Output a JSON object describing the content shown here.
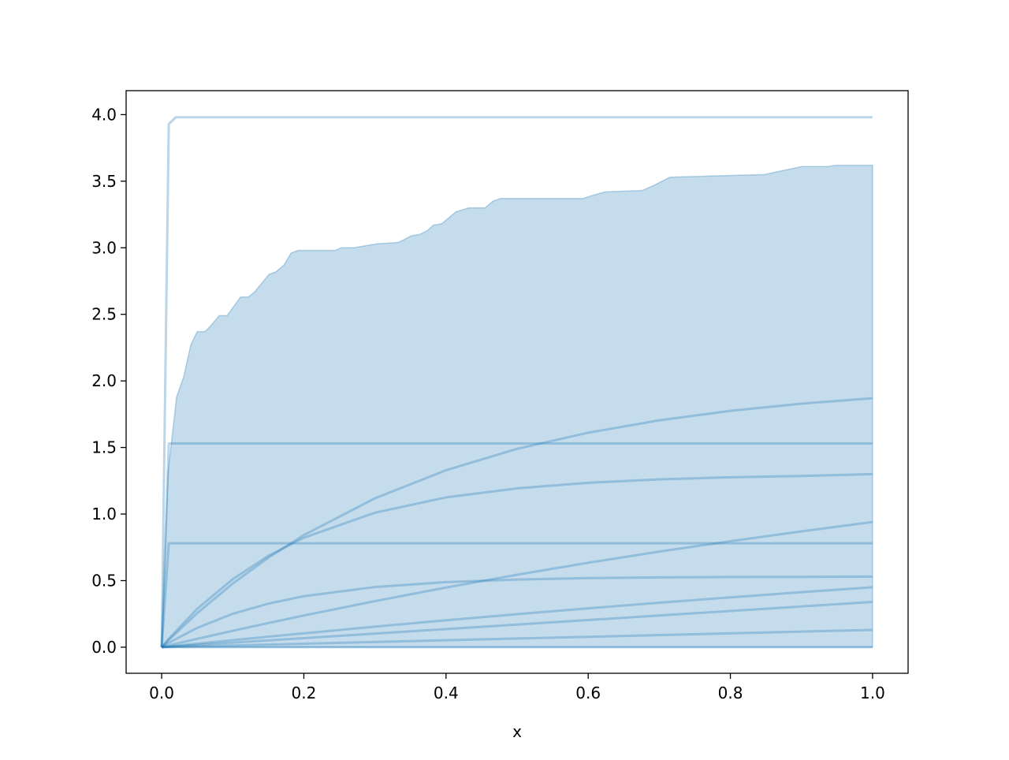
{
  "chart_data": {
    "type": "line",
    "title": "",
    "xlabel": "x",
    "ylabel": "",
    "xlim": [
      -0.05,
      1.05
    ],
    "ylim": [
      -0.196,
      4.18
    ],
    "xticks": [
      0.0,
      0.2,
      0.4,
      0.6,
      0.8,
      1.0
    ],
    "xtick_labels": [
      "0.0",
      "0.2",
      "0.4",
      "0.6",
      "0.8",
      "1.0"
    ],
    "yticks": [
      0.0,
      0.5,
      1.0,
      1.5,
      2.0,
      2.5,
      3.0,
      3.5,
      4.0
    ],
    "ytick_labels": [
      "0.0",
      "0.5",
      "1.0",
      "1.5",
      "2.0",
      "2.5",
      "3.0",
      "3.5",
      "4.0"
    ],
    "grid": false,
    "legend": "none",
    "colors": {
      "line": "#1f77b4",
      "fill": "#1f77b4",
      "axes": "#000000"
    },
    "band": {
      "upper": {
        "x": [
          0,
          0.009,
          0.021,
          0.031,
          0.041,
          0.05,
          0.061,
          0.07,
          0.081,
          0.092,
          0.111,
          0.122,
          0.131,
          0.151,
          0.161,
          0.172,
          0.182,
          0.192,
          0.244,
          0.253,
          0.27,
          0.303,
          0.333,
          0.351,
          0.363,
          0.374,
          0.382,
          0.394,
          0.414,
          0.432,
          0.455,
          0.466,
          0.477,
          0.593,
          0.604,
          0.624,
          0.676,
          0.693,
          0.715,
          0.848,
          0.865,
          0.901,
          0.937,
          0.948,
          1.0
        ],
        "y": [
          0,
          1.31,
          1.88,
          2.03,
          2.27,
          2.37,
          2.37,
          2.42,
          2.49,
          2.49,
          2.63,
          2.63,
          2.67,
          2.8,
          2.82,
          2.87,
          2.96,
          2.98,
          2.98,
          3.0,
          3.0,
          3.03,
          3.04,
          3.09,
          3.1,
          3.13,
          3.17,
          3.18,
          3.27,
          3.3,
          3.3,
          3.35,
          3.37,
          3.37,
          3.39,
          3.42,
          3.43,
          3.47,
          3.53,
          3.55,
          3.57,
          3.61,
          3.61,
          3.62,
          3.62
        ]
      },
      "lower": 0
    },
    "series": [
      {
        "x": [
          0,
          0.01,
          0.02,
          1.0
        ],
        "y": [
          0,
          3.93,
          3.98,
          3.98
        ]
      },
      {
        "x": [
          0,
          0.01,
          1.0
        ],
        "y": [
          0,
          1.53,
          1.53
        ]
      },
      {
        "x": [
          0,
          0.01,
          1.0
        ],
        "y": [
          0,
          0.78,
          0.78
        ]
      },
      {
        "x": [
          0,
          0.01,
          0.05,
          0.1,
          0.15,
          0.2,
          0.3,
          0.4,
          0.5,
          0.6,
          0.7,
          0.8,
          0.9,
          1.0
        ],
        "y": [
          0,
          0.054,
          0.256,
          0.478,
          0.672,
          0.842,
          1.118,
          1.329,
          1.49,
          1.611,
          1.704,
          1.775,
          1.829,
          1.87
        ]
      },
      {
        "x": [
          0,
          0.01,
          0.05,
          0.1,
          0.15,
          0.2,
          0.3,
          0.4,
          0.5,
          0.6,
          0.7,
          0.8,
          0.9,
          1.0
        ],
        "y": [
          0,
          0.063,
          0.288,
          0.511,
          0.686,
          0.822,
          1.01,
          1.125,
          1.193,
          1.235,
          1.261,
          1.276,
          1.286,
          1.3
        ]
      },
      {
        "x": [
          0,
          0.01,
          0.05,
          0.1,
          0.15,
          0.2,
          0.3,
          0.4,
          0.5,
          0.6,
          0.7,
          0.8,
          0.9,
          1.0
        ],
        "y": [
          0,
          0.033,
          0.145,
          0.251,
          0.327,
          0.383,
          0.452,
          0.489,
          0.508,
          0.519,
          0.524,
          0.527,
          0.528,
          0.53
        ]
      },
      {
        "x": [
          0,
          0.01,
          0.05,
          0.1,
          0.15,
          0.2,
          0.3,
          0.4,
          0.5,
          0.6,
          0.7,
          0.8,
          0.9,
          1.0
        ],
        "y": [
          0,
          0.013,
          0.063,
          0.123,
          0.181,
          0.238,
          0.346,
          0.448,
          0.544,
          0.634,
          0.718,
          0.796,
          0.87,
          0.94
        ]
      },
      {
        "x": [
          0,
          0.01,
          0.05,
          0.1,
          0.15,
          0.2,
          0.3,
          0.4,
          0.5,
          0.6,
          0.7,
          0.8,
          0.9,
          1.0
        ],
        "y": [
          0,
          0.005,
          0.027,
          0.053,
          0.079,
          0.104,
          0.154,
          0.202,
          0.248,
          0.292,
          0.334,
          0.374,
          0.413,
          0.45
        ]
      },
      {
        "x": [
          0,
          1.0
        ],
        "y": [
          0,
          0.34
        ]
      },
      {
        "x": [
          0,
          1.0
        ],
        "y": [
          0,
          0.13
        ]
      },
      {
        "x": [
          0,
          1.0
        ],
        "y": [
          0,
          0
        ]
      }
    ]
  }
}
